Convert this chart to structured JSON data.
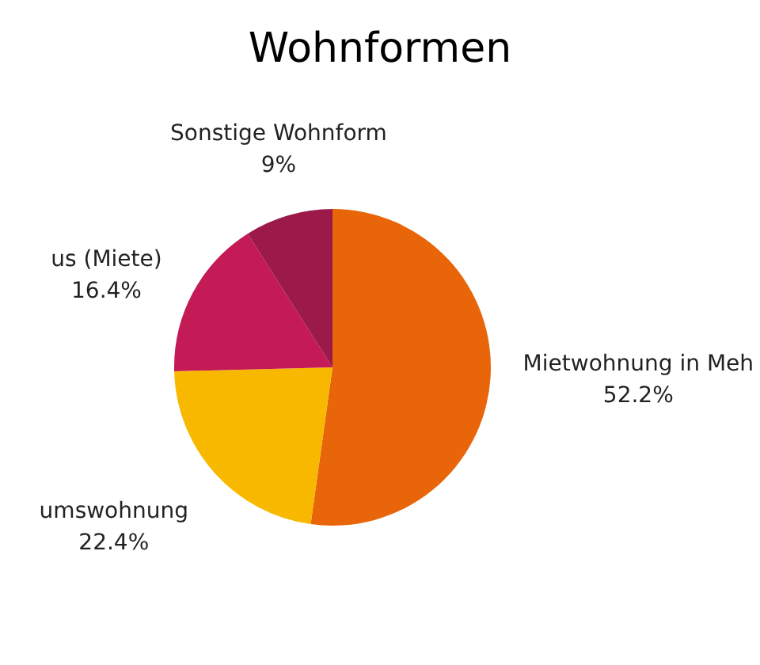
{
  "chart_data": {
    "type": "pie",
    "title": "Wohnformen",
    "categories": [
      "Mietwohnung in Meh",
      "umswohnung",
      "us (Miete)",
      "Sonstige Wohnform"
    ],
    "values": [
      52.2,
      22.4,
      16.4,
      9
    ],
    "colors": [
      "#e8650a",
      "#f9b800",
      "#c41a55",
      "#9b1a4a"
    ],
    "value_labels": [
      "52.2%",
      "22.4%",
      "16.4%",
      "9%"
    ],
    "legend": false
  }
}
